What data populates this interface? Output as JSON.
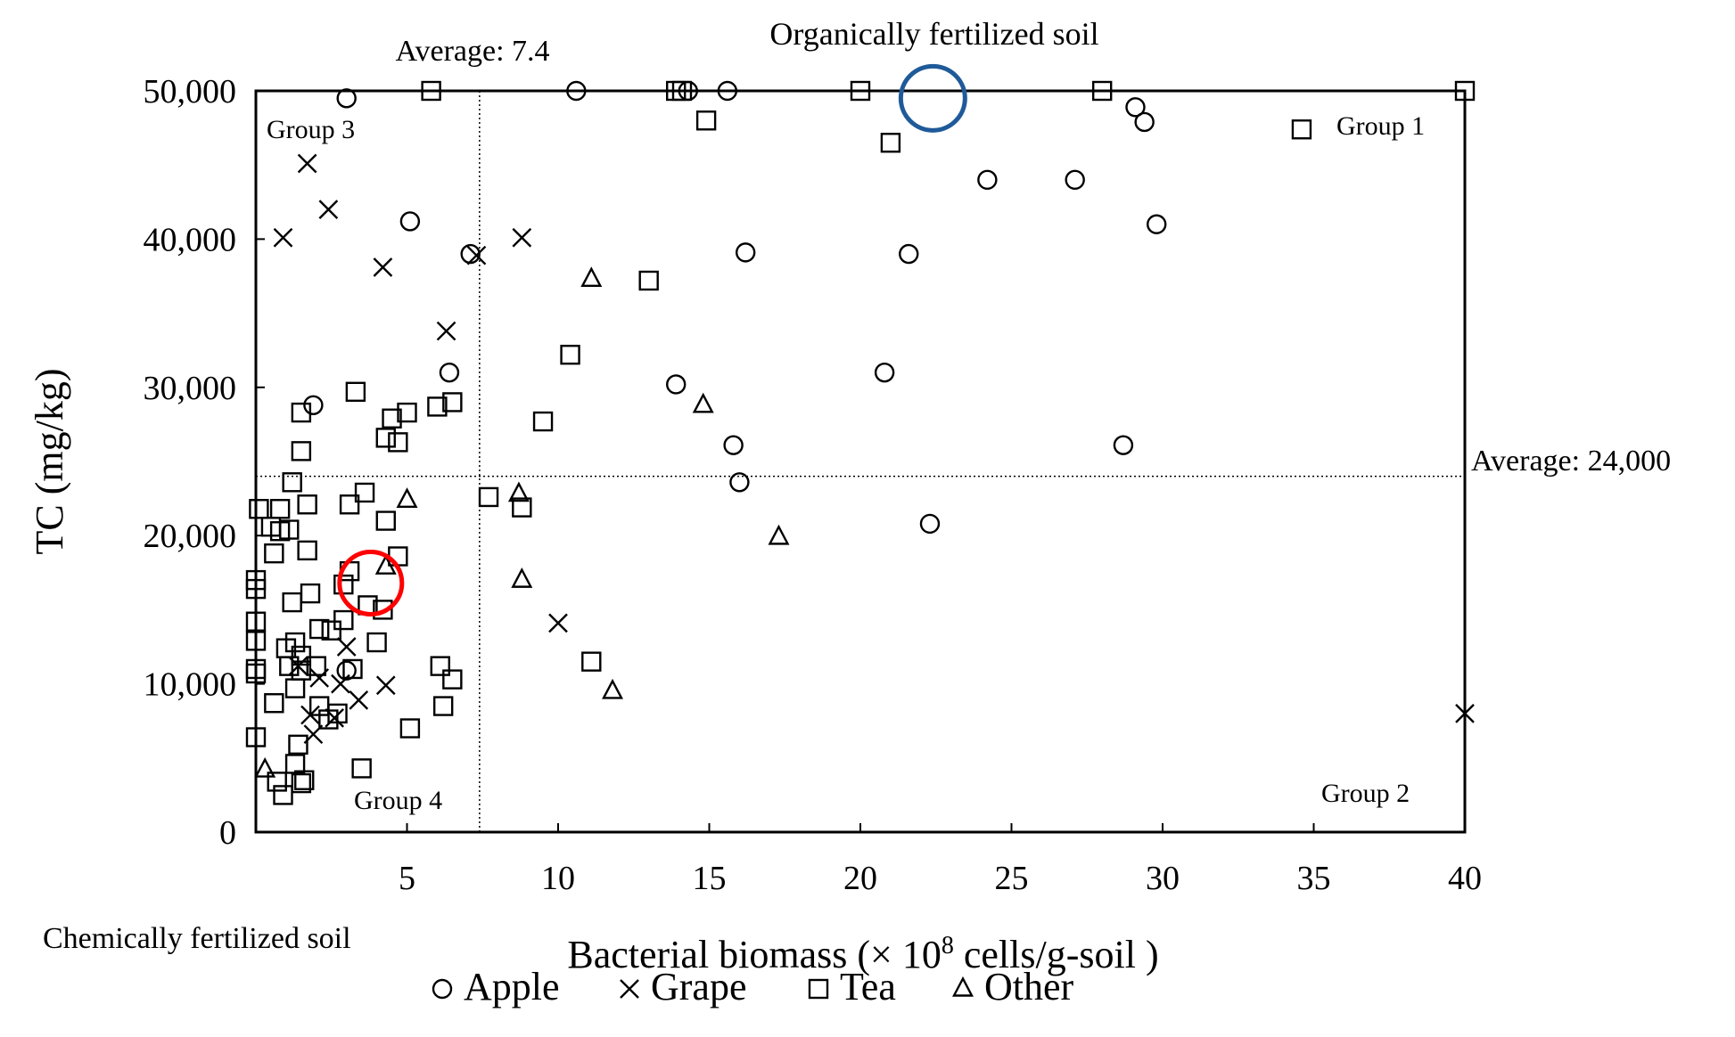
{
  "chart_data": {
    "type": "scatter",
    "title": "",
    "xlabel_prefix": "Bacterial biomass (× 10",
    "xlabel_sup": "8",
    "xlabel_suffix": " cells/g-soil )",
    "ylabel": "TC (mg/kg)",
    "xlim": [
      0,
      40
    ],
    "ylim": [
      0,
      50000
    ],
    "x_ticks": [
      5,
      10,
      15,
      20,
      25,
      30,
      35,
      40
    ],
    "y_ticks": [
      0,
      10000,
      20000,
      30000,
      40000,
      50000
    ],
    "y_tick_labels": [
      "0",
      "10,000",
      "20,000",
      "30,000",
      "40,000",
      "50,000"
    ],
    "grid": false,
    "legend_position": "bottom-center",
    "reference_lines": {
      "x_average": 7.4,
      "y_average": 24000,
      "x_average_label": "Average: 7.4",
      "y_average_label": "Average: 24,000"
    },
    "annotations": {
      "organic_label": "Organically fertilized soil",
      "chemical_label": "Chemically fertilized soil",
      "group1": "Group 1",
      "group2": "Group 2",
      "group3": "Group 3",
      "group4": "Group 4",
      "organic_circle_center": [
        22.4,
        49500
      ],
      "chemical_circle_center": [
        3.8,
        16800
      ],
      "organic_circle_color": "#1f5a99",
      "chemical_circle_color": "#ff0000"
    },
    "series": [
      {
        "name": "Apple",
        "marker": "circle",
        "points": [
          [
            3,
            49500
          ],
          [
            10.6,
            50000
          ],
          [
            14.3,
            50000
          ],
          [
            15.6,
            50000
          ],
          [
            29.1,
            48900
          ],
          [
            29.4,
            47900
          ],
          [
            24.2,
            44000
          ],
          [
            27.1,
            44000
          ],
          [
            29.8,
            41000
          ],
          [
            5.1,
            41200
          ],
          [
            7.1,
            39000
          ],
          [
            16.2,
            39100
          ],
          [
            21.6,
            39000
          ],
          [
            6.4,
            31000
          ],
          [
            1.9,
            28800
          ],
          [
            13.9,
            30200
          ],
          [
            20.8,
            31000
          ],
          [
            15.8,
            26100
          ],
          [
            16.0,
            23600
          ],
          [
            28.7,
            26100
          ],
          [
            22.3,
            20800
          ],
          [
            3.0,
            10900
          ]
        ]
      },
      {
        "name": "Grape",
        "marker": "cross",
        "points": [
          [
            1.7,
            45100
          ],
          [
            2.4,
            42000
          ],
          [
            0.9,
            40100
          ],
          [
            4.2,
            38100
          ],
          [
            7.3,
            38900
          ],
          [
            8.8,
            40100
          ],
          [
            6.3,
            33800
          ],
          [
            3.0,
            12500
          ],
          [
            1.4,
            11200
          ],
          [
            2.1,
            10400
          ],
          [
            2.8,
            10000
          ],
          [
            3.4,
            8900
          ],
          [
            4.3,
            9900
          ],
          [
            1.8,
            7900
          ],
          [
            1.9,
            6600
          ],
          [
            2.6,
            7700
          ],
          [
            10.0,
            14100
          ],
          [
            40.0,
            8000
          ]
        ]
      },
      {
        "name": "Tea",
        "marker": "square",
        "points": [
          [
            5.8,
            50000
          ],
          [
            13.9,
            50000
          ],
          [
            14.1,
            50000
          ],
          [
            20.0,
            50000
          ],
          [
            28.0,
            50000
          ],
          [
            40.0,
            50000
          ],
          [
            14.9,
            48000
          ],
          [
            21.0,
            46500
          ],
          [
            34.6,
            47400
          ],
          [
            13.0,
            37200
          ],
          [
            10.4,
            32200
          ],
          [
            3.3,
            29700
          ],
          [
            6.0,
            28700
          ],
          [
            6.5,
            29000
          ],
          [
            9.5,
            27700
          ],
          [
            1.5,
            28300
          ],
          [
            5.0,
            28300
          ],
          [
            4.5,
            27900
          ],
          [
            1.5,
            25700
          ],
          [
            4.3,
            26600
          ],
          [
            4.7,
            26300
          ],
          [
            1.2,
            23600
          ],
          [
            3.6,
            22900
          ],
          [
            3.1,
            22100
          ],
          [
            1.7,
            22100
          ],
          [
            7.7,
            22600
          ],
          [
            8.8,
            21900
          ],
          [
            0.1,
            21800
          ],
          [
            0.8,
            21800
          ],
          [
            0.5,
            20600
          ],
          [
            0.8,
            20300
          ],
          [
            4.3,
            21000
          ],
          [
            1.1,
            20400
          ],
          [
            1.7,
            19000
          ],
          [
            0.6,
            18800
          ],
          [
            4.7,
            18600
          ],
          [
            0.0,
            17000
          ],
          [
            0.0,
            16400
          ],
          [
            1.8,
            16100
          ],
          [
            2.9,
            16700
          ],
          [
            3.1,
            17600
          ],
          [
            1.2,
            15500
          ],
          [
            3.7,
            15300
          ],
          [
            4.2,
            15000
          ],
          [
            2.1,
            13700
          ],
          [
            2.5,
            13600
          ],
          [
            2.9,
            14300
          ],
          [
            0.0,
            14200
          ],
          [
            0.0,
            12900
          ],
          [
            1.3,
            12800
          ],
          [
            1.0,
            12400
          ],
          [
            1.5,
            11900
          ],
          [
            4.0,
            12800
          ],
          [
            1.1,
            11200
          ],
          [
            2.0,
            11200
          ],
          [
            0.0,
            11000
          ],
          [
            0.0,
            10700
          ],
          [
            1.5,
            10900
          ],
          [
            6.1,
            11200
          ],
          [
            6.5,
            10300
          ],
          [
            3.2,
            11000
          ],
          [
            11.1,
            11500
          ],
          [
            1.3,
            9700
          ],
          [
            0.6,
            8700
          ],
          [
            2.1,
            8500
          ],
          [
            2.7,
            8000
          ],
          [
            6.2,
            8500
          ],
          [
            2.4,
            7600
          ],
          [
            5.1,
            7000
          ],
          [
            0.0,
            6400
          ],
          [
            1.4,
            5900
          ],
          [
            3.5,
            4300
          ],
          [
            1.3,
            4600
          ],
          [
            0.7,
            3400
          ],
          [
            1.5,
            3300
          ],
          [
            1.6,
            3500
          ],
          [
            0.9,
            2500
          ]
        ]
      },
      {
        "name": "Other",
        "marker": "triangle",
        "points": [
          [
            11.1,
            37300
          ],
          [
            14.8,
            28800
          ],
          [
            5.0,
            22400
          ],
          [
            8.7,
            22800
          ],
          [
            17.3,
            19900
          ],
          [
            4.3,
            17900
          ],
          [
            8.8,
            17000
          ],
          [
            11.8,
            9500
          ],
          [
            0.3,
            4200
          ]
        ]
      }
    ]
  }
}
